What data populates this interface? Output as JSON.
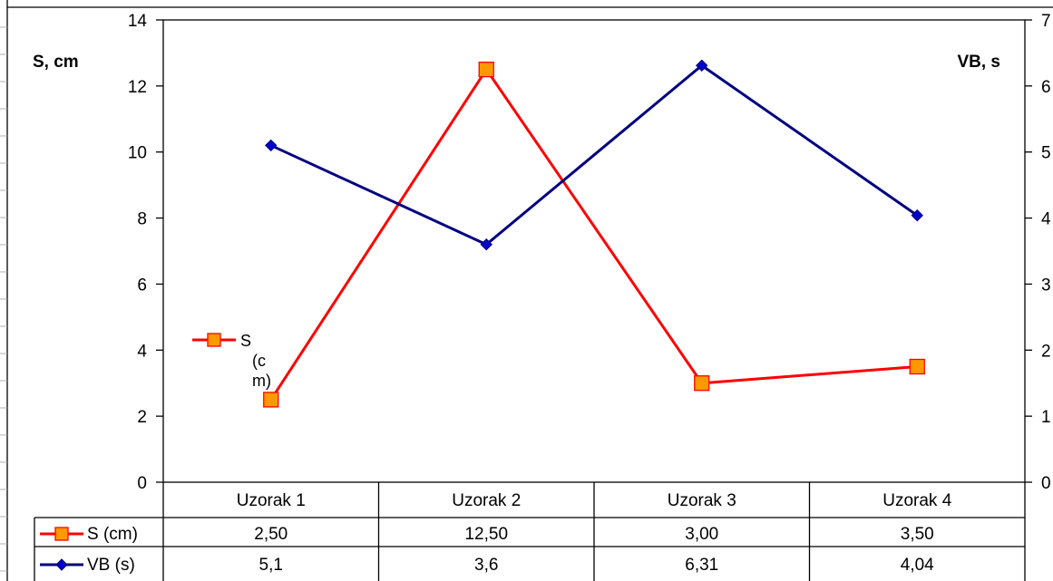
{
  "chart_data": {
    "type": "line",
    "categories": [
      "Uzorak 1",
      "Uzorak 2",
      "Uzorak 3",
      "Uzorak 4"
    ],
    "series": [
      {
        "name": "S (cm)",
        "values": [
          2.5,
          12.5,
          3.0,
          3.5
        ],
        "value_labels": [
          "2,50",
          "12,50",
          "3,00",
          "3,50"
        ],
        "axis": "left",
        "color": "#ff0000",
        "marker": "square",
        "marker_fill": "#ff9900"
      },
      {
        "name": "VB (s)",
        "values": [
          5.1,
          3.6,
          6.31,
          4.04
        ],
        "value_labels": [
          "5,1",
          "3,6",
          "6,31",
          "4,04"
        ],
        "axis": "right",
        "color": "#000080",
        "marker": "diamond",
        "marker_fill": "#0000cc"
      }
    ],
    "ylabel": "S, cm",
    "y2label": "VB, s",
    "ylim": [
      0,
      14
    ],
    "yticks": [
      "0",
      "2",
      "4",
      "6",
      "8",
      "10",
      "12",
      "14"
    ],
    "y2lim": [
      0,
      7
    ],
    "y2ticks": [
      "0",
      "1",
      "2",
      "3",
      "4",
      "5",
      "6",
      "7"
    ],
    "legend": {
      "placement": "inside-left",
      "entry_lines": [
        "S",
        "(c",
        "m)"
      ]
    },
    "data_table": true,
    "grid": false
  }
}
